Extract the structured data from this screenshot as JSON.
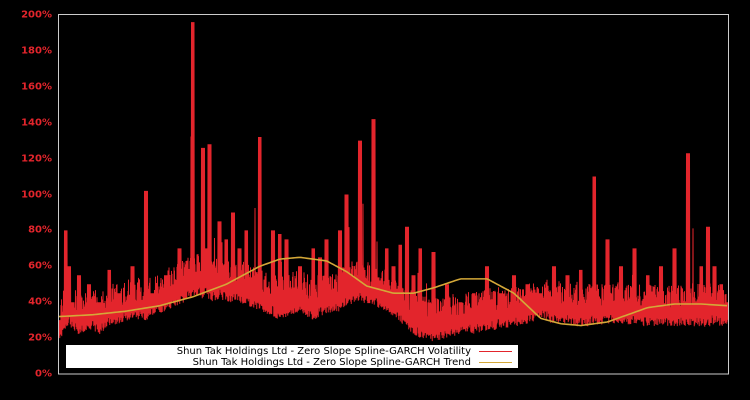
{
  "chart_data": {
    "type": "line",
    "title": "",
    "xlabel": "",
    "ylabel": "",
    "ylim": [
      0,
      200
    ],
    "y_ticks": [
      "0%",
      "20%",
      "40%",
      "60%",
      "80%",
      "100%",
      "120%",
      "140%",
      "160%",
      "180%",
      "200%"
    ],
    "grid": false,
    "legend_position": "lower-left inside plot",
    "background": "#000000",
    "axis_color": "#cccccc",
    "tick_label_color": "#e3252c",
    "series": [
      {
        "name": "Shun Tak Holdings Ltd - Zero Slope Spline-GARCH Volatility",
        "color": "#e3252c",
        "x_frac": [
          0.0,
          0.01,
          0.015,
          0.02,
          0.03,
          0.045,
          0.06,
          0.075,
          0.09,
          0.11,
          0.13,
          0.14,
          0.16,
          0.18,
          0.2,
          0.215,
          0.22,
          0.225,
          0.24,
          0.25,
          0.26,
          0.27,
          0.28,
          0.3,
          0.32,
          0.33,
          0.34,
          0.36,
          0.38,
          0.39,
          0.4,
          0.42,
          0.43,
          0.45,
          0.47,
          0.49,
          0.5,
          0.51,
          0.52,
          0.53,
          0.54,
          0.56,
          0.58,
          0.6,
          0.62,
          0.64,
          0.66,
          0.68,
          0.7,
          0.72,
          0.74,
          0.76,
          0.78,
          0.8,
          0.82,
          0.84,
          0.86,
          0.88,
          0.9,
          0.92,
          0.94,
          0.96,
          0.97,
          0.98,
          0.99,
          1.0
        ],
        "peaks": [
          30,
          80,
          60,
          40,
          55,
          50,
          40,
          58,
          45,
          60,
          102,
          45,
          55,
          70,
          196,
          126,
          70,
          128,
          85,
          75,
          90,
          70,
          80,
          132,
          80,
          78,
          75,
          60,
          70,
          65,
          75,
          80,
          100,
          130,
          142,
          70,
          60,
          72,
          82,
          55,
          70,
          68,
          50,
          40,
          45,
          60,
          45,
          55,
          50,
          45,
          60,
          55,
          58,
          110,
          75,
          60,
          70,
          55,
          60,
          70,
          123,
          60,
          82,
          60,
          50,
          40
        ],
        "troughs": [
          18,
          25,
          28,
          24,
          22,
          25,
          22,
          26,
          28,
          30,
          30,
          32,
          35,
          38,
          44,
          42,
          45,
          40,
          42,
          40,
          40,
          40,
          38,
          35,
          32,
          30,
          32,
          34,
          30,
          32,
          33,
          35,
          38,
          40,
          38,
          35,
          32,
          28,
          25,
          22,
          20,
          18,
          20,
          22,
          22,
          24,
          25,
          26,
          28,
          30,
          28,
          28,
          26,
          27,
          28,
          28,
          27,
          26,
          27,
          26,
          27,
          26,
          26,
          28,
          26,
          27
        ]
      },
      {
        "name": "Shun Tak Holdings Ltd - Zero Slope Spline-GARCH Trend",
        "color": "#d4a838",
        "x_frac": [
          0.0,
          0.05,
          0.1,
          0.15,
          0.2,
          0.25,
          0.28,
          0.3,
          0.33,
          0.36,
          0.4,
          0.43,
          0.46,
          0.5,
          0.53,
          0.56,
          0.6,
          0.64,
          0.68,
          0.7,
          0.72,
          0.75,
          0.78,
          0.82,
          0.85,
          0.88,
          0.92,
          0.96,
          1.0
        ],
        "values": [
          32,
          33,
          35,
          38,
          43,
          50,
          56,
          60,
          64,
          65,
          63,
          57,
          49,
          45,
          45,
          48,
          53,
          53,
          45,
          38,
          31,
          28,
          27,
          29,
          33,
          37,
          39,
          39,
          38
        ]
      }
    ]
  },
  "legend": {
    "items": [
      {
        "label": "Shun Tak Holdings Ltd - Zero Slope Spline-GARCH Volatility",
        "color": "#e3252c"
      },
      {
        "label": "Shun Tak Holdings Ltd - Zero Slope Spline-GARCH Trend",
        "color": "#d4a838"
      }
    ]
  }
}
